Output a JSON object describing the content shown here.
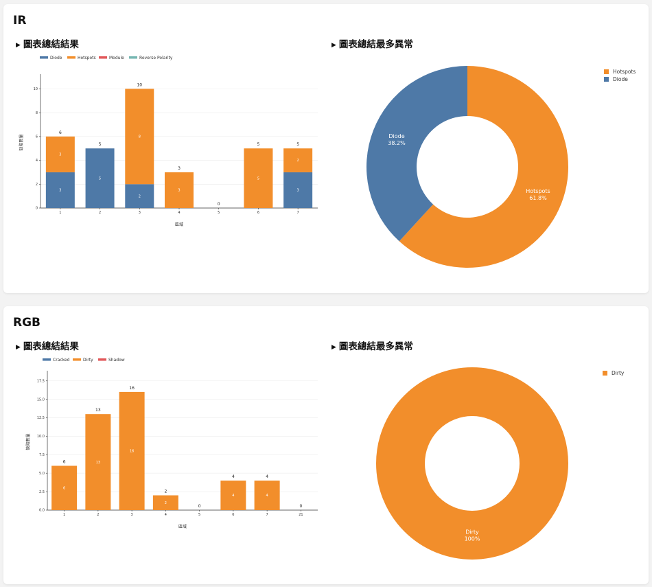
{
  "colors": {
    "Diode": "#4e79a7",
    "Cracked": "#4e79a7",
    "Hotspots": "#f28e2b",
    "Dirty": "#f28e2b",
    "Module": "#e15759",
    "Shadow": "#e15759",
    "Reverse Polarity": "#76b7b2"
  },
  "sections": [
    {
      "title": "IR",
      "bar_title": "圖表總結結果",
      "pie_title": "圖表總結最多異常"
    },
    {
      "title": "RGB",
      "bar_title": "圖表總結結果",
      "pie_title": "圖表總結最多異常"
    }
  ],
  "chart_data": [
    {
      "type": "bar",
      "stacked": true,
      "categories": [
        "1",
        "2",
        "3",
        "4",
        "5",
        "6",
        "7"
      ],
      "series": [
        {
          "name": "Diode",
          "values": [
            3,
            5,
            2,
            0,
            0,
            0,
            3
          ]
        },
        {
          "name": "Hotspots",
          "values": [
            3,
            0,
            8,
            3,
            0,
            5,
            2
          ]
        },
        {
          "name": "Module",
          "values": [
            0,
            0,
            0,
            0,
            0,
            0,
            0
          ]
        },
        {
          "name": "Reverse Polarity",
          "values": [
            0,
            0,
            0,
            0,
            0,
            0,
            0
          ]
        }
      ],
      "totals": [
        6,
        5,
        10,
        3,
        0,
        5,
        5
      ],
      "xlabel": "區域",
      "ylabel": "缺陷數量",
      "ylim": [
        0,
        11
      ],
      "yticks": [
        0,
        2,
        4,
        6,
        8,
        10
      ],
      "ytick_labels": [
        "0",
        "2",
        "4",
        "6",
        "8",
        "10"
      ],
      "legend": "top-left",
      "grid": true
    },
    {
      "type": "pie",
      "hole": true,
      "labels": [
        "Hotspots",
        "Diode"
      ],
      "values": [
        61.8,
        38.2
      ],
      "slice_labels": [
        "Hotspots\n61.8%",
        "Diode\n38.2%"
      ],
      "legend": "top-right"
    },
    {
      "type": "bar",
      "stacked": true,
      "categories": [
        "1",
        "2",
        "3",
        "4",
        "5",
        "6",
        "7",
        "21"
      ],
      "series": [
        {
          "name": "Cracked",
          "values": [
            0,
            0,
            0,
            0,
            0,
            0,
            0,
            0
          ]
        },
        {
          "name": "Dirty",
          "values": [
            6,
            13,
            16,
            2,
            0,
            4,
            4,
            0
          ]
        },
        {
          "name": "Shadow",
          "values": [
            0,
            0,
            0,
            0,
            0,
            0,
            0,
            0
          ]
        }
      ],
      "totals": [
        6,
        13,
        16,
        2,
        0,
        4,
        4,
        0
      ],
      "xlabel": "區域",
      "ylabel": "缺陷數量",
      "ylim": [
        0,
        18.5
      ],
      "yticks": [
        0,
        2.5,
        5,
        7.5,
        10,
        12.5,
        15,
        17.5
      ],
      "ytick_labels": [
        "0.0",
        "2.5",
        "5.0",
        "7.5",
        "10.0",
        "12.5",
        "15.0",
        "17.5"
      ],
      "legend": "top-left",
      "grid": true
    },
    {
      "type": "pie",
      "hole": true,
      "labels": [
        "Dirty"
      ],
      "values": [
        100
      ],
      "slice_labels": [
        "Dirty\n100%"
      ],
      "legend": "top-right"
    }
  ]
}
